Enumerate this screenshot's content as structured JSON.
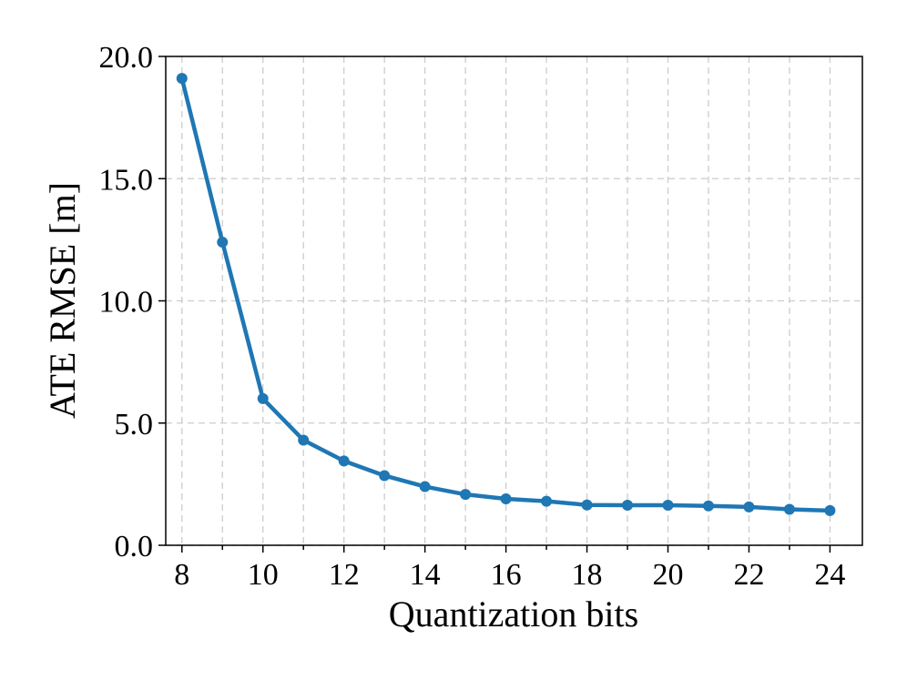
{
  "chart_data": {
    "type": "line",
    "title": "",
    "xlabel": "Quantization bits",
    "ylabel": "ATE RMSE [m]",
    "xlim": [
      7.6,
      24.8
    ],
    "ylim": [
      0.0,
      20.0
    ],
    "x_major_ticks": [
      8,
      10,
      12,
      14,
      16,
      18,
      20,
      22,
      24
    ],
    "x_minor_ticks": [
      9,
      11,
      13,
      15,
      17,
      19,
      21,
      23
    ],
    "x_tick_labels": [
      "8",
      "10",
      "12",
      "14",
      "16",
      "18",
      "20",
      "22",
      "24"
    ],
    "y_ticks": [
      0.0,
      5.0,
      10.0,
      15.0,
      20.0
    ],
    "y_tick_labels": [
      "0.0",
      "5.0",
      "10.0",
      "15.0",
      "20.0"
    ],
    "grid": true,
    "legend": "none",
    "series": [
      {
        "color": "#1f77b4",
        "marker": "circle",
        "x": [
          8,
          9,
          10,
          11,
          12,
          13,
          14,
          15,
          16,
          17,
          18,
          19,
          20,
          21,
          22,
          23,
          24
        ],
        "y": [
          19.1,
          12.4,
          6.0,
          4.3,
          3.45,
          2.85,
          2.4,
          2.08,
          1.9,
          1.8,
          1.65,
          1.64,
          1.64,
          1.61,
          1.57,
          1.47,
          1.42
        ]
      }
    ]
  }
}
